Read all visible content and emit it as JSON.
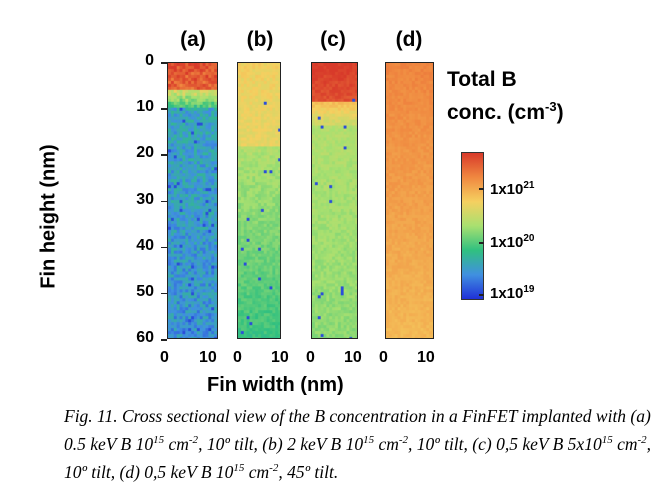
{
  "chart_data": {
    "type": "heatmap",
    "panels": [
      {
        "label": "(a)",
        "dose": "0.5 keV B 10^15 cm^-2, 10° tilt"
      },
      {
        "label": "(b)",
        "dose": "2 keV B 10^15 cm^-2, 10° tilt"
      },
      {
        "label": "(c)",
        "dose": "0,5 keV B 5x10^15 cm^-2, 10° tilt"
      },
      {
        "label": "(d)",
        "dose": "0,5 keV B 10^15 cm^-2, 45° tilt"
      }
    ],
    "ylabel": "Fin height (nm)",
    "xlabel": "Fin width (nm)",
    "y_ticks": [
      "0",
      "10",
      "20",
      "30",
      "40",
      "50",
      "60"
    ],
    "x_ticks": [
      "0",
      "10"
    ],
    "ylim": [
      0,
      60
    ],
    "xlim": [
      0,
      10
    ],
    "colorbar": {
      "title_line1": "Total B",
      "title_line2_prefix": "conc. (cm",
      "title_line2_sup": "-3",
      "title_line2_suffix": ")",
      "ticks": [
        {
          "base": "1x10",
          "exp": "21"
        },
        {
          "base": "1x10",
          "exp": "20"
        },
        {
          "base": "1x10",
          "exp": "19"
        }
      ],
      "colors": [
        "#d83a2a",
        "#f08840",
        "#f5d060",
        "#a8e070",
        "#30c080",
        "#4090e0",
        "#2030d8"
      ]
    }
  },
  "caption": {
    "prefix": "Fig. 11. Cross sectional view of the B concentration in a FinFET implanted with (a) 0.5 keV B 10",
    "s1": "15",
    "t1": " cm",
    "s2": "-2",
    "t2": ", 10º tilt, (b) 2 keV B 10",
    "s3": "15",
    "t3": " cm",
    "s4": "-2",
    "t4": ", 10º tilt, (c) 0,5 keV B 5x10",
    "s5": "15",
    "t5": " cm",
    "s6": "-2",
    "t6": ", 10º tilt, (d) 0,5 keV B 10",
    "s7": "15",
    "t7": " cm",
    "s8": "-2",
    "t8": ", 45º tilt."
  }
}
